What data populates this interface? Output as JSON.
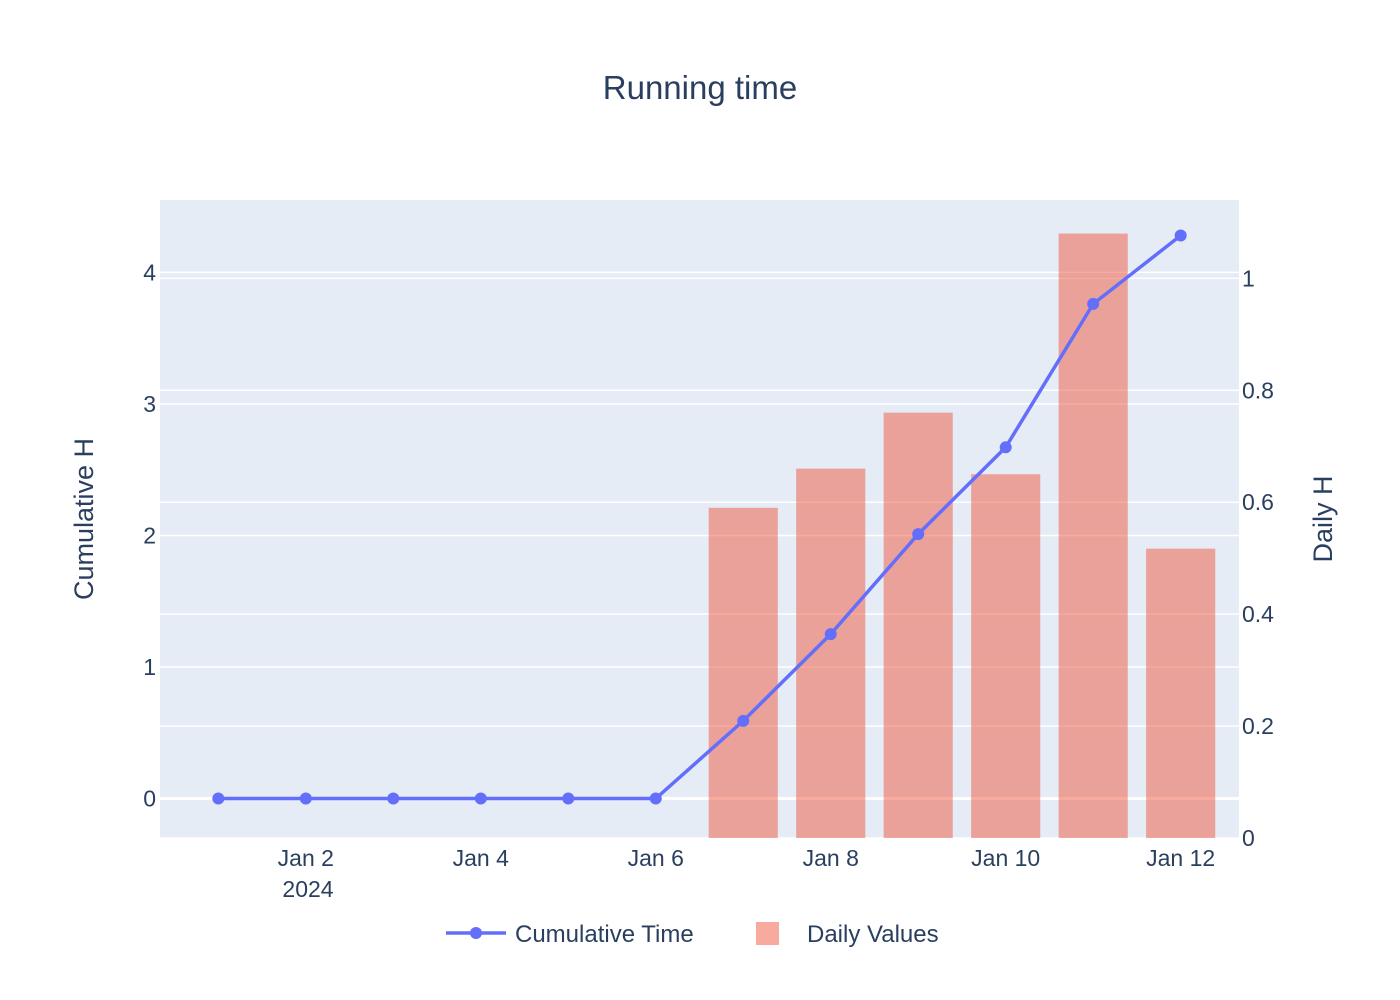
{
  "chart_data": {
    "type": "bar+line",
    "title": "Running time",
    "x": [
      "2024-01-01",
      "2024-01-02",
      "2024-01-03",
      "2024-01-04",
      "2024-01-05",
      "2024-01-06",
      "2024-01-07",
      "2024-01-08",
      "2024-01-09",
      "2024-01-10",
      "2024-01-11",
      "2024-01-12"
    ],
    "xaxis": {
      "tick_labels": [
        "Jan 2",
        "Jan 4",
        "Jan 6",
        "Jan 8",
        "Jan 10",
        "Jan 12"
      ],
      "tick_dates": [
        "2024-01-02",
        "2024-01-04",
        "2024-01-06",
        "2024-01-08",
        "2024-01-10",
        "2024-01-12"
      ],
      "year_label": "2024",
      "range": [
        "2023-12-31T08:00",
        "2024-01-12T16:00"
      ]
    },
    "yaxis_left": {
      "title": "Cumulative H",
      "range": [
        -0.3,
        4.55
      ],
      "tick_values": [
        0,
        1,
        2,
        3,
        4
      ],
      "tick_labels": [
        "0",
        "1",
        "2",
        "3",
        "4"
      ]
    },
    "yaxis_right": {
      "title": "Daily H",
      "range": [
        0,
        1.14
      ],
      "tick_values": [
        0,
        0.2,
        0.4,
        0.6,
        0.8,
        1
      ],
      "tick_labels": [
        "0",
        "0.2",
        "0.4",
        "0.6",
        "0.8",
        "1"
      ]
    },
    "series": [
      {
        "name": "Cumulative Time",
        "kind": "line",
        "axis": "left",
        "color": "#636efa",
        "values": [
          0,
          0,
          0,
          0,
          0,
          0,
          0.59,
          1.25,
          2.01,
          2.67,
          3.76,
          4.28
        ]
      },
      {
        "name": "Daily Values",
        "kind": "bar",
        "axis": "right",
        "color": "#ef553b",
        "opacity": 0.5,
        "values": [
          0,
          0,
          0,
          0,
          0,
          0,
          0.59,
          0.66,
          0.76,
          0.65,
          1.08,
          0.517
        ]
      }
    ],
    "grid": true,
    "plot_background": "#e5ecf6",
    "legend": "bottom-center, horizontal"
  }
}
